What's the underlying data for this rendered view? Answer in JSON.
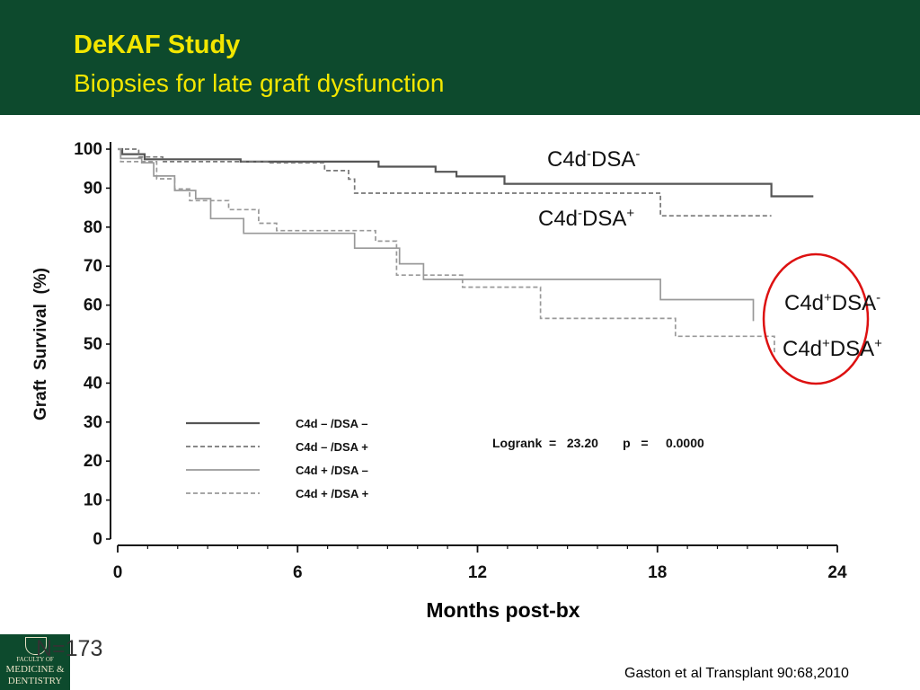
{
  "header": {
    "title": "DeKAF Study",
    "subtitle": "Biopsies for late graft dysfunction"
  },
  "colors": {
    "header_bg": "#0d4a2d",
    "title_text": "#f2e600",
    "highlight_circle": "#dd1111",
    "series_dark": "#555555",
    "series_light": "#999999"
  },
  "annotations": {
    "c4dneg_dsaneg": {
      "base": "C4d",
      "sup1": "-",
      "mid": "DSA",
      "sup2": "-"
    },
    "c4dneg_dsapos": {
      "base": "C4d",
      "sup1": "-",
      "mid": "DSA",
      "sup2": "+"
    },
    "c4dpos_dsaneg": {
      "base": "C4d",
      "sup1": "+",
      "mid": "DSA",
      "sup2": "-"
    },
    "c4dpos_dsapos": {
      "base": "C4d",
      "sup1": "+",
      "mid": "DSA",
      "sup2": "+"
    }
  },
  "footer": {
    "n_count": "N=173",
    "logo_line1": "FACULTY OF",
    "logo_line2": "MEDICINE &",
    "logo_line3": "DENTISTRY",
    "citation": "Gaston et al Transplant 90:68,2010"
  },
  "chart_data": {
    "type": "line",
    "step": true,
    "ylabel": "Graft  Survival  (%)",
    "xlabel": "Months post-bx",
    "xlim": [
      0,
      24
    ],
    "ylim": [
      0,
      100
    ],
    "xticks": [
      0,
      6,
      12,
      18,
      24
    ],
    "yticks": [
      0,
      10,
      20,
      30,
      40,
      50,
      60,
      70,
      80,
      90,
      100
    ],
    "grid": false,
    "legend_position": "bottom-left",
    "stat_text": "Logrank  =   23.20       p   =     0.0000",
    "series": [
      {
        "name": "C4d – /DSA –",
        "style": "solid",
        "color": "#555555",
        "width": 2.2,
        "points": [
          [
            0,
            100
          ],
          [
            0.15,
            98.7
          ],
          [
            0.9,
            97.4
          ],
          [
            4.1,
            96.8
          ],
          [
            8.7,
            95.5
          ],
          [
            10.6,
            94.2
          ],
          [
            11.3,
            93
          ],
          [
            12.9,
            91.1
          ],
          [
            21.8,
            87.9
          ],
          [
            23.2,
            87.9
          ]
        ]
      },
      {
        "name": "C4d – /DSA +",
        "style": "dashed",
        "color": "#777777",
        "width": 1.7,
        "points": [
          [
            0,
            100
          ],
          [
            0.7,
            98
          ],
          [
            1.5,
            96.8
          ],
          [
            5,
            96.5
          ],
          [
            6.9,
            94.5
          ],
          [
            7.7,
            92.3
          ],
          [
            7.9,
            88.7
          ],
          [
            17.8,
            88.7
          ],
          [
            18.1,
            82.9
          ],
          [
            21.8,
            82.9
          ]
        ]
      },
      {
        "name": "C4d + /DSA –",
        "style": "solid",
        "color": "#999999",
        "width": 1.7,
        "points": [
          [
            0,
            100
          ],
          [
            0.1,
            97.6
          ],
          [
            0.8,
            96.5
          ],
          [
            1.2,
            93.1
          ],
          [
            1.9,
            89.4
          ],
          [
            2.6,
            87.3
          ],
          [
            3.1,
            82.2
          ],
          [
            4.2,
            78.4
          ],
          [
            7.9,
            74.6
          ],
          [
            9.4,
            70.6
          ],
          [
            10.2,
            66.6
          ],
          [
            18.1,
            61.4
          ],
          [
            21.2,
            55.9
          ]
        ]
      },
      {
        "name": "C4d + /DSA +",
        "style": "dashed",
        "color": "#999999",
        "width": 1.7,
        "points": [
          [
            0,
            100
          ],
          [
            0.1,
            96.8
          ],
          [
            1.3,
            92.4
          ],
          [
            1.9,
            89.8
          ],
          [
            2.4,
            86.8
          ],
          [
            3.7,
            84.5
          ],
          [
            4.7,
            81
          ],
          [
            5.3,
            79.1
          ],
          [
            8.6,
            76.4
          ],
          [
            9.3,
            67.7
          ],
          [
            11.5,
            64.6
          ],
          [
            14.1,
            56.6
          ],
          [
            18.6,
            52
          ],
          [
            21.9,
            47.3
          ]
        ]
      }
    ]
  }
}
